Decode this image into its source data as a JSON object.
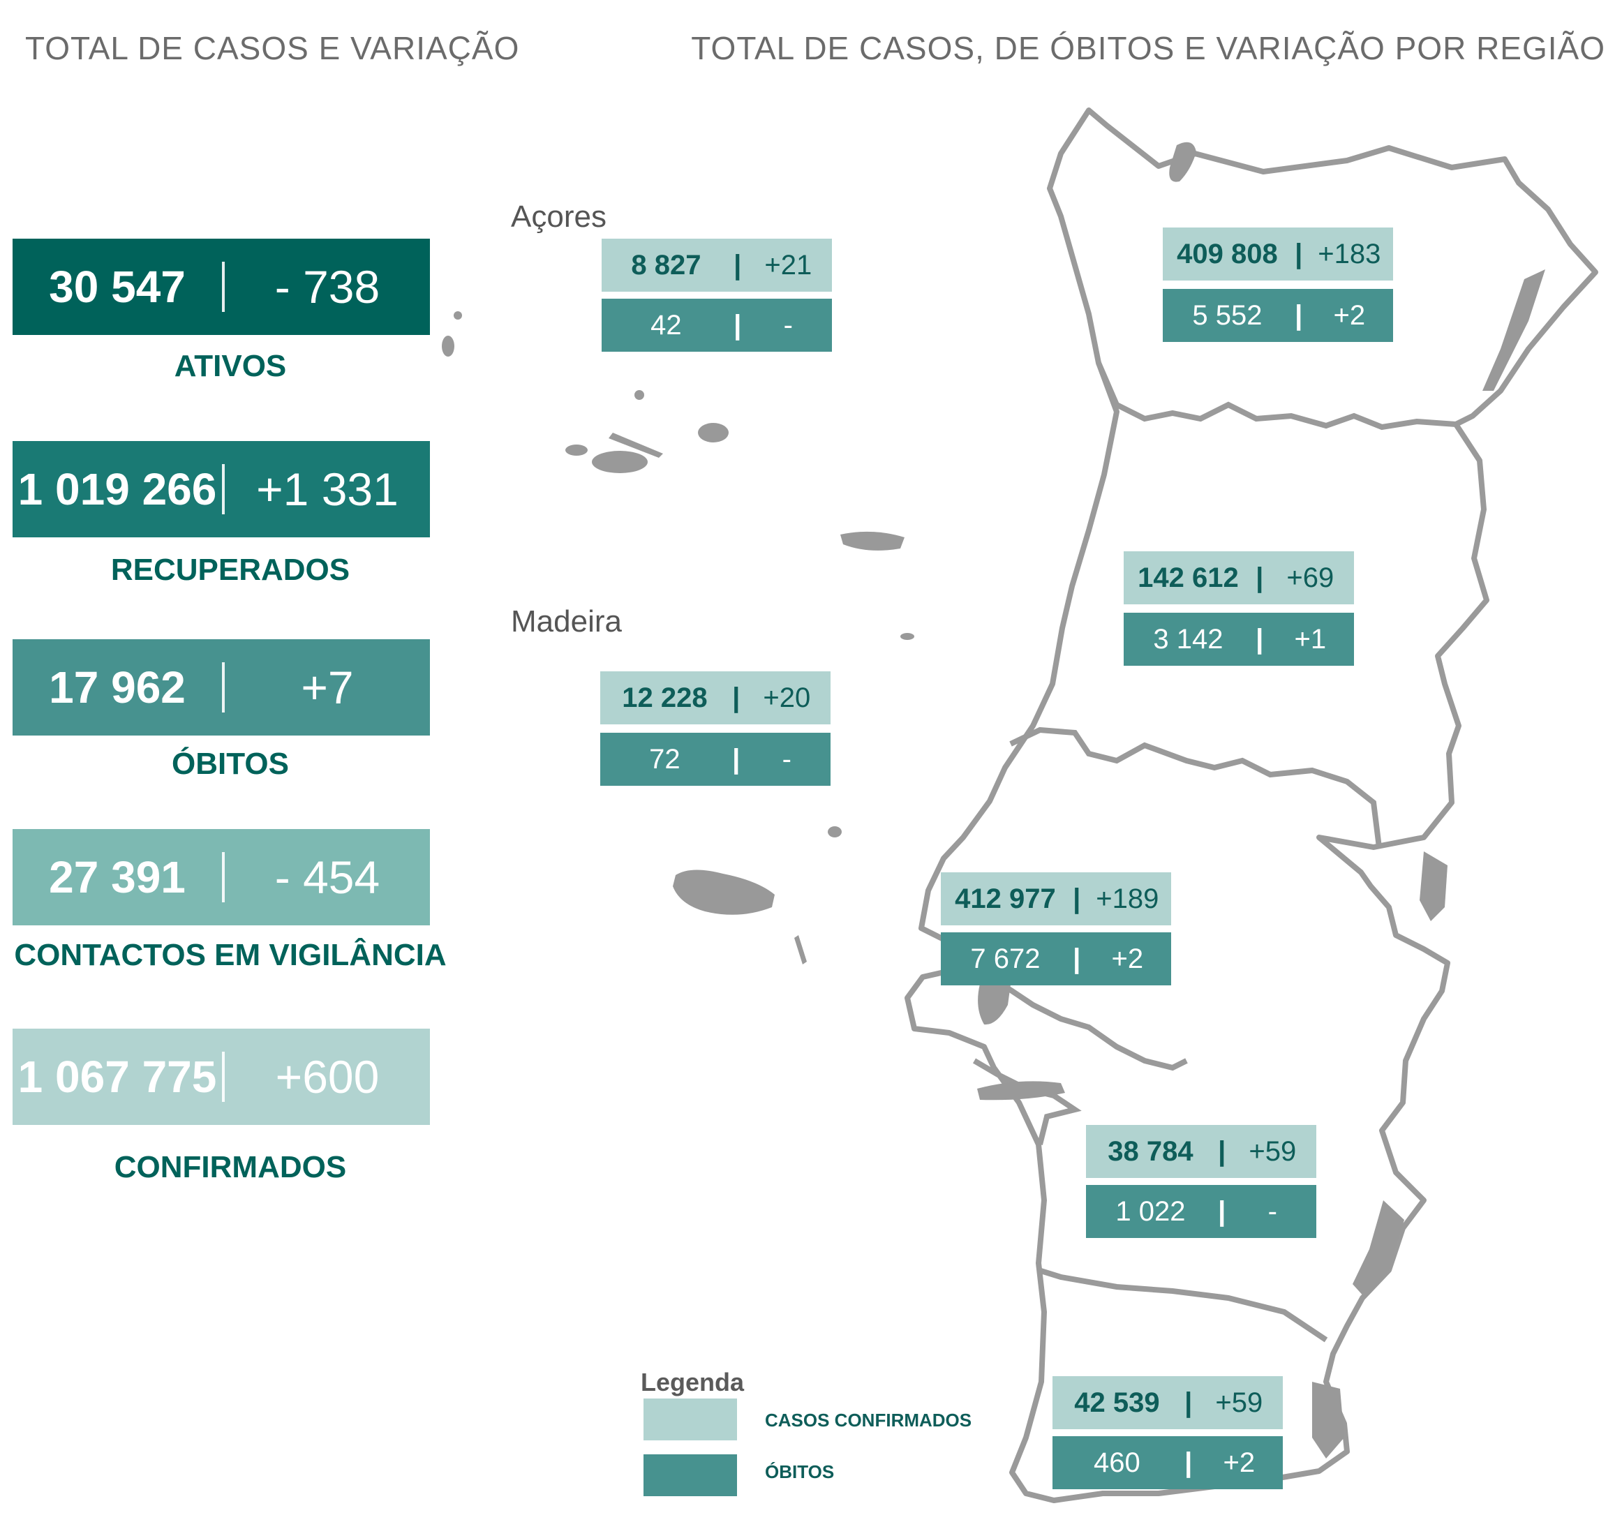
{
  "headings": {
    "left": "TOTAL DE CASOS E VARIAÇÃO",
    "right": "TOTAL DE CASOS, DE ÓBITOS E VARIAÇÃO POR REGIÃO"
  },
  "totals": [
    {
      "value": "30 547",
      "change": "- 738",
      "label": "ATIVOS",
      "bg": "#00625a",
      "color": "#ffffff"
    },
    {
      "value": "1 019 266",
      "change": "+1 331",
      "label": "RECUPERADOS",
      "bg": "#1a7a74",
      "color": "#ffffff"
    },
    {
      "value": "17 962",
      "change": "+7",
      "label": "ÓBITOS",
      "bg": "#47928f",
      "color": "#ffffff"
    },
    {
      "value": "27 391",
      "change": "- 454",
      "label": "CONTACTOS EM VIGILÂNCIA",
      "bg": "#7db9b2",
      "color": "#ffffff"
    },
    {
      "value": "1 067 775",
      "change": "+600",
      "label": "CONFIRMADOS",
      "bg": "#b1d3d0",
      "color": "#ffffff"
    }
  ],
  "islands": {
    "acores": "Açores",
    "madeira": "Madeira"
  },
  "regions": [
    {
      "cases": "8 827",
      "cases_change": "+21",
      "deaths": "42",
      "deaths_change": "-"
    },
    {
      "cases": "12 228",
      "cases_change": "+20",
      "deaths": "72",
      "deaths_change": "-"
    },
    {
      "cases": "409 808",
      "cases_change": "+183",
      "deaths": "5 552",
      "deaths_change": "+2"
    },
    {
      "cases": "142 612",
      "cases_change": "+69",
      "deaths": "3 142",
      "deaths_change": "+1"
    },
    {
      "cases": "412 977",
      "cases_change": "+189",
      "deaths": "7 672",
      "deaths_change": "+2"
    },
    {
      "cases": "38 784",
      "cases_change": "+59",
      "deaths": "1 022",
      "deaths_change": "-"
    },
    {
      "cases": "42 539",
      "cases_change": "+59",
      "deaths": "460",
      "deaths_change": "+2"
    }
  ],
  "separator": "|",
  "legend": {
    "title": "Legenda",
    "cases_label": "CASOS CONFIRMADOS",
    "deaths_label": "ÓBITOS",
    "cases_color": "#b1d3d0",
    "deaths_color": "#47928f"
  }
}
